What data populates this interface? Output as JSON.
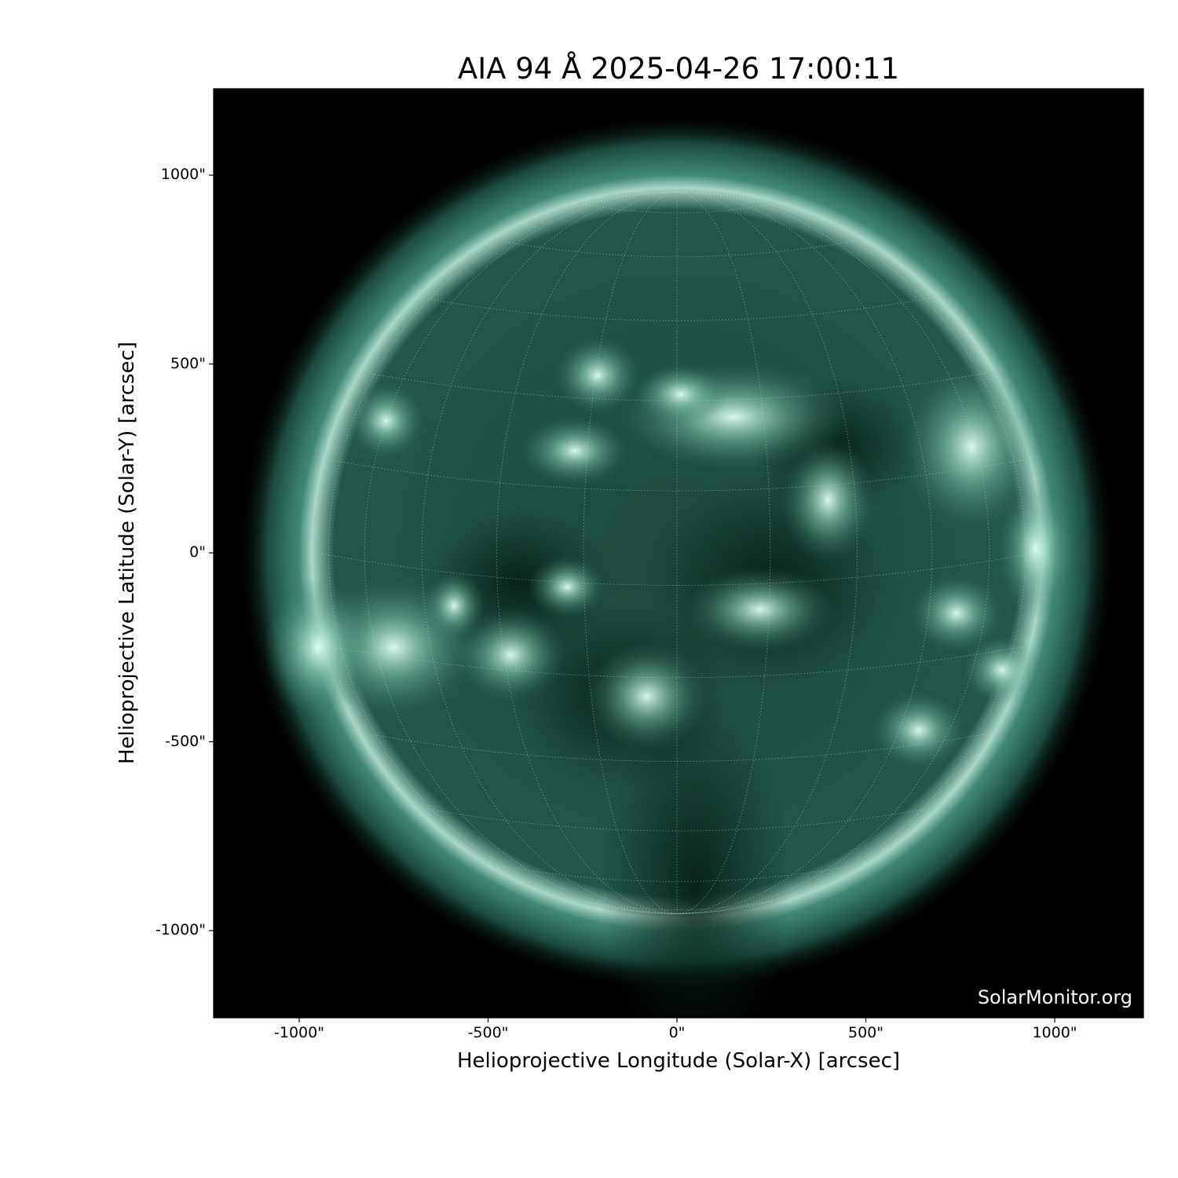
{
  "title": "AIA 94 Å 2025-04-26 17:00:11",
  "xlabel": "Helioprojective Longitude (Solar-X) [arcsec]",
  "ylabel": "Helioprojective Latitude (Solar-Y) [arcsec]",
  "xticks": [
    "-1000\"",
    "-500\"",
    "0\"",
    "500\"",
    "1000\""
  ],
  "yticks": [
    "1000\"",
    "500\"",
    "0\"",
    "-500\"",
    "-1000\""
  ],
  "xtick_values": [
    -1000,
    -500,
    0,
    500,
    1000
  ],
  "ytick_values": [
    1000,
    500,
    0,
    -500,
    -1000
  ],
  "xlim": [
    -1230,
    1230
  ],
  "ylim": [
    -1230,
    1230
  ],
  "solar_radius_arcsec": 955,
  "grid": "heliographic, 15° spacing, dotted",
  "colormap": "sdoaia94",
  "colors": {
    "background": "#000000",
    "disk": "#1f4d40",
    "bright": "#d8f2ea",
    "corona": "#2f7a66"
  },
  "watermark": "SolarMonitor.org"
}
